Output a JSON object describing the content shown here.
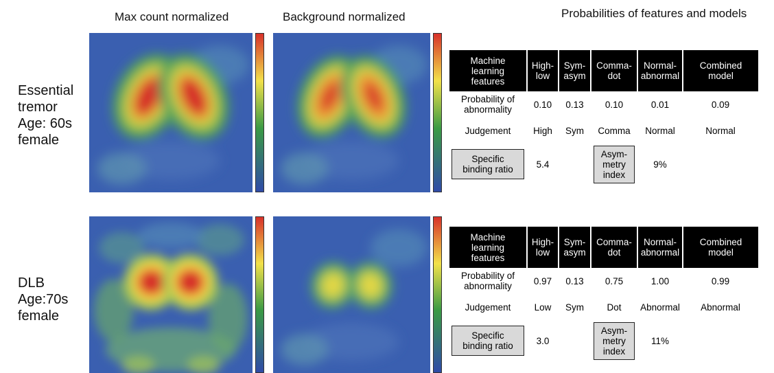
{
  "headers": {
    "max_count": "Max count normalized",
    "background": "Background normalized",
    "probabilities": "Probabilities of features and models"
  },
  "cases": [
    {
      "label": [
        "Essential",
        "tremor",
        "Age: 60s",
        "female"
      ],
      "table": {
        "header": [
          [
            "Machine",
            "learning",
            "features"
          ],
          [
            "High-",
            "low"
          ],
          [
            "Sym-",
            "asym"
          ],
          [
            "Comma-",
            "dot"
          ],
          [
            "Normal-",
            "abnormal"
          ],
          [
            "Combined",
            "model"
          ]
        ],
        "probability": {
          "label": [
            "Probability of",
            "abnormality"
          ],
          "values": [
            "0.10",
            "0.13",
            "0.10",
            "0.01",
            "0.09"
          ]
        },
        "judgement": {
          "label": "Judgement",
          "values": [
            "High",
            "Sym",
            "Comma",
            "Normal",
            "Normal"
          ]
        },
        "sbr": {
          "label": [
            "Specific",
            "binding ratio"
          ],
          "value": "5.4"
        },
        "asymmetry": {
          "label": [
            "Asym-",
            "metry",
            "index"
          ],
          "value": "9%"
        }
      }
    },
    {
      "label": [
        "DLB",
        "Age:70s",
        "female"
      ],
      "table": {
        "header": [
          [
            "Machine",
            "learning",
            "features"
          ],
          [
            "High-",
            "low"
          ],
          [
            "Sym-",
            "asym"
          ],
          [
            "Comma-",
            "dot"
          ],
          [
            "Normal-",
            "abnormal"
          ],
          [
            "Combined",
            "model"
          ]
        ],
        "probability": {
          "label": [
            "Probability of",
            "abnormality"
          ],
          "values": [
            "0.97",
            "0.13",
            "0.75",
            "1.00",
            "0.99"
          ]
        },
        "judgement": {
          "label": "Judgement",
          "values": [
            "Low",
            "Sym",
            "Dot",
            "Abnormal",
            "Abnormal"
          ]
        },
        "sbr": {
          "label": [
            "Specific",
            "binding ratio"
          ],
          "value": "3.0"
        },
        "asymmetry": {
          "label": [
            "Asym-",
            "metry",
            "index"
          ],
          "value": "11%"
        }
      }
    }
  ]
}
